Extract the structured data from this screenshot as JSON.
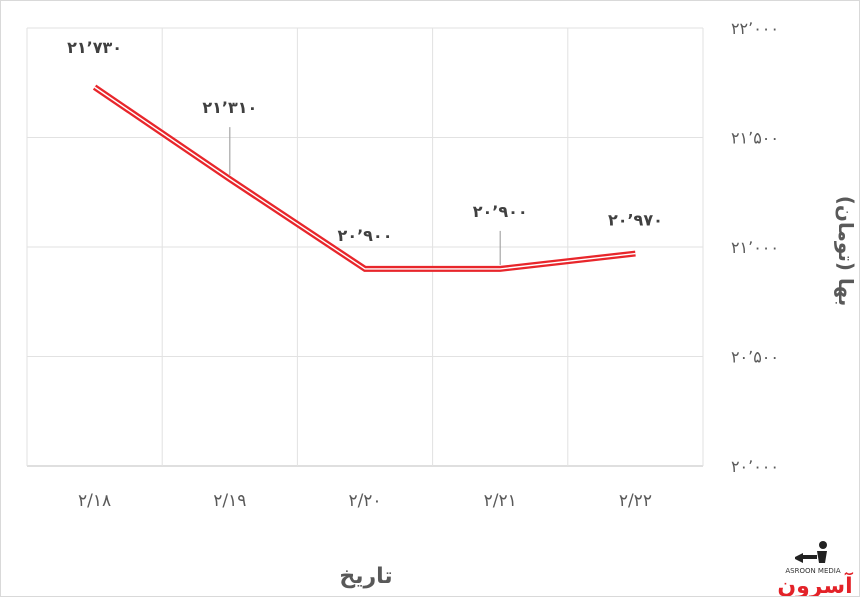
{
  "chart_data": {
    "type": "line",
    "title": "",
    "xlabel": "تاریخ",
    "ylabel": "بها (تومان)",
    "categories": [
      "۲/۱۸",
      "۲/۱۹",
      "۲/۲۰",
      "۲/۲۱",
      "۲/۲۲"
    ],
    "series": [
      {
        "values": [
          21730,
          21310,
          20900,
          20900,
          20970
        ],
        "labels": [
          "۲۱٬۷۳۰",
          "۲۱٬۳۱۰",
          "۲۰٬۹۰۰",
          "۲۰٬۹۰۰",
          "۲۰٬۹۷۰"
        ],
        "color": "#e8262b"
      }
    ],
    "ylim": [
      20000,
      22000
    ],
    "yticks": [
      20000,
      20500,
      21000,
      21500,
      22000
    ],
    "ytick_labels": [
      "۲۰٬۰۰۰",
      "۲۰٬۵۰۰",
      "۲۱٬۰۰۰",
      "۲۱٬۵۰۰",
      "۲۲٬۰۰۰"
    ],
    "grid": true,
    "y_axis_side": "right"
  },
  "watermark": {
    "name": "آسرون",
    "latin": "ASROON MEDIA",
    "color": "#e32228"
  }
}
